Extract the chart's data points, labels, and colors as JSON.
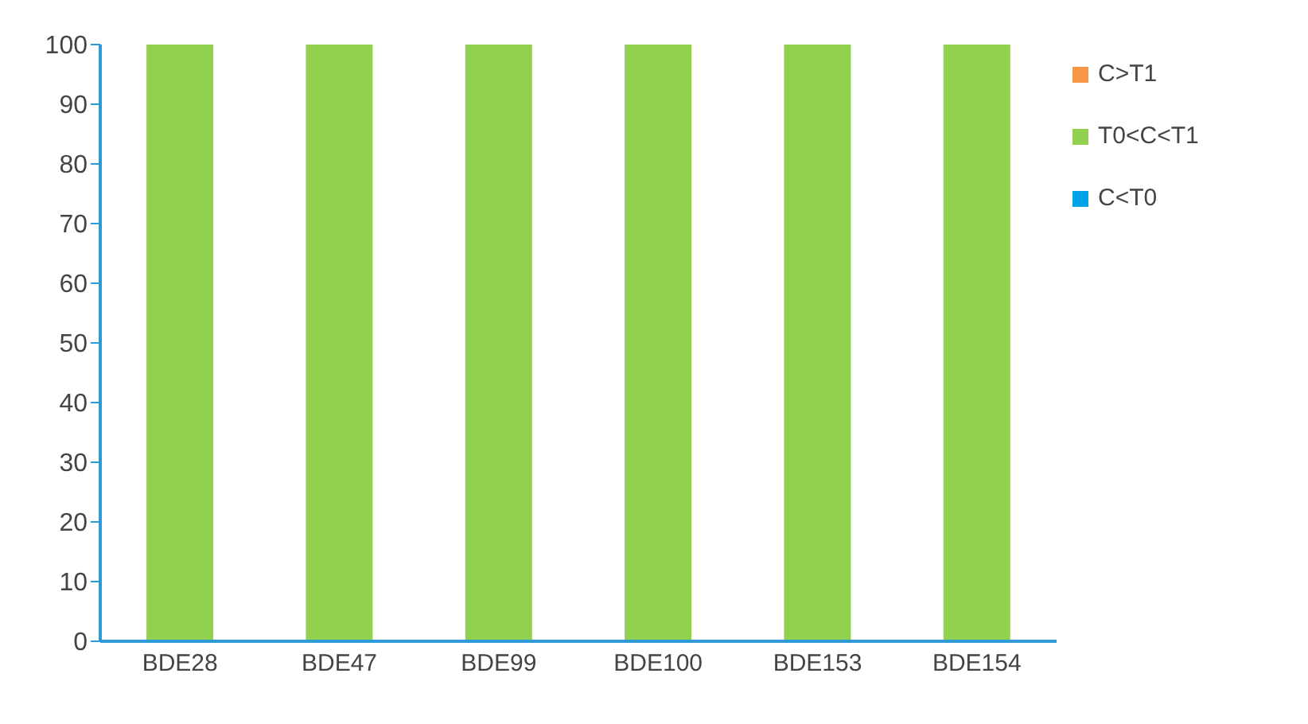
{
  "chart_data": {
    "type": "bar",
    "stacked": true,
    "categories": [
      "BDE28",
      "BDE47",
      "BDE99",
      "BDE100",
      "BDE153",
      "BDE154"
    ],
    "series": [
      {
        "name": "C<T0",
        "color": "#00a2e8",
        "values": [
          0,
          0,
          0,
          0,
          0,
          0
        ]
      },
      {
        "name": "T0<C<T1",
        "color": "#92d050",
        "values": [
          100,
          100,
          100,
          100,
          100,
          100
        ]
      },
      {
        "name": "C>T1",
        "color": "#f79646",
        "values": [
          0,
          0,
          0,
          0,
          0,
          0
        ]
      }
    ],
    "ylim": [
      0,
      100
    ],
    "yticks": [
      0,
      10,
      20,
      30,
      40,
      50,
      60,
      70,
      80,
      90,
      100
    ],
    "grid": false,
    "legend": "right"
  }
}
